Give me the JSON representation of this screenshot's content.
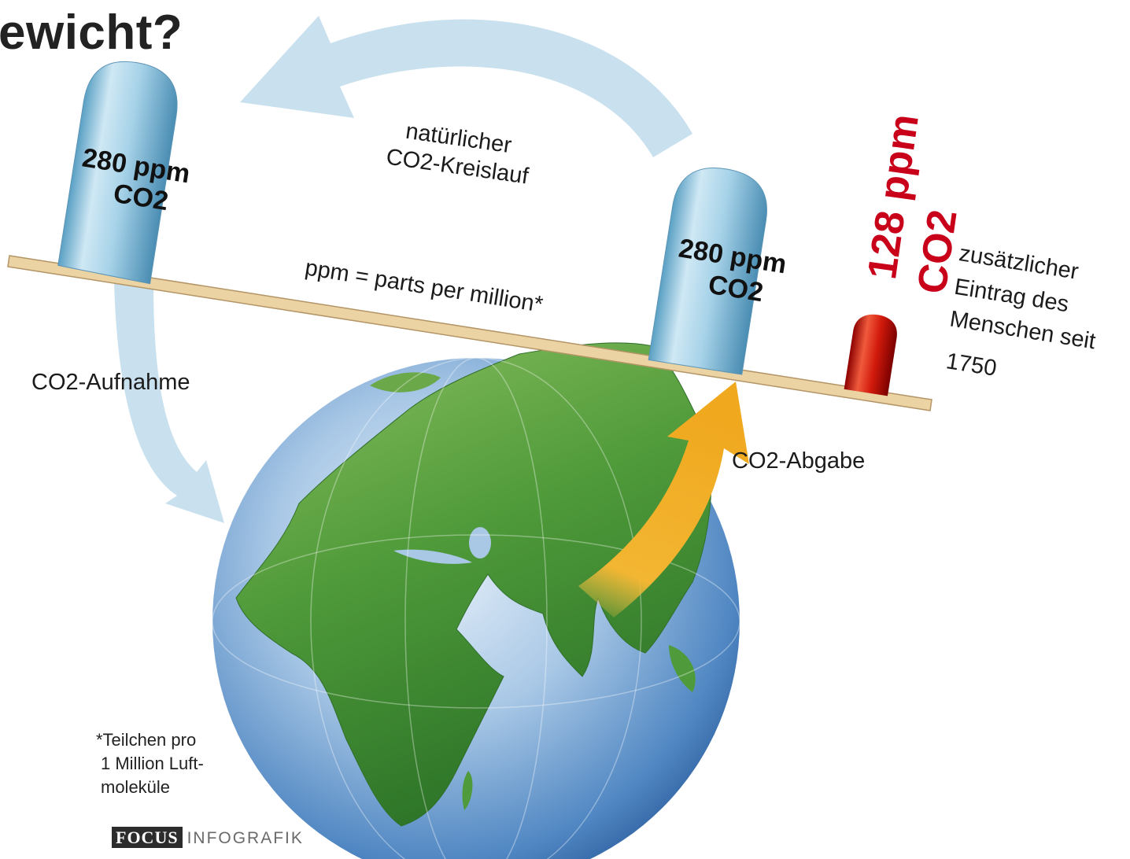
{
  "title": "ewicht?",
  "cycle_label": [
    "natürlicher",
    "CO2-Kreislauf"
  ],
  "left_cylinder": {
    "value": "280 ppm",
    "unit": "CO2"
  },
  "right_cylinder": {
    "value": "280 ppm",
    "unit": "CO2"
  },
  "added": {
    "value": "128 ppm",
    "unit": "CO2"
  },
  "added_desc": [
    "zusätzlicher",
    "Eintrag des",
    "Menschen seit",
    "1750"
  ],
  "beam_label": "ppm = parts per million*",
  "uptake_label": "CO2-Aufnahme",
  "release_label": "CO2-Abgabe",
  "footnote": [
    "*Teilchen pro",
    "1 Million Luft-",
    "moleküle"
  ],
  "credit": {
    "brand": "FOCUS",
    "text": "INFOGRAFIK"
  },
  "colors": {
    "cylinder": "#a9d4ea",
    "added": "#c8001a",
    "beam": "#e8cfa0",
    "arrow_cycle": "#c9e1ee",
    "arrow_release": "#f4b632",
    "land": "#4f9a3a",
    "ocean": "#6aa2d4"
  }
}
